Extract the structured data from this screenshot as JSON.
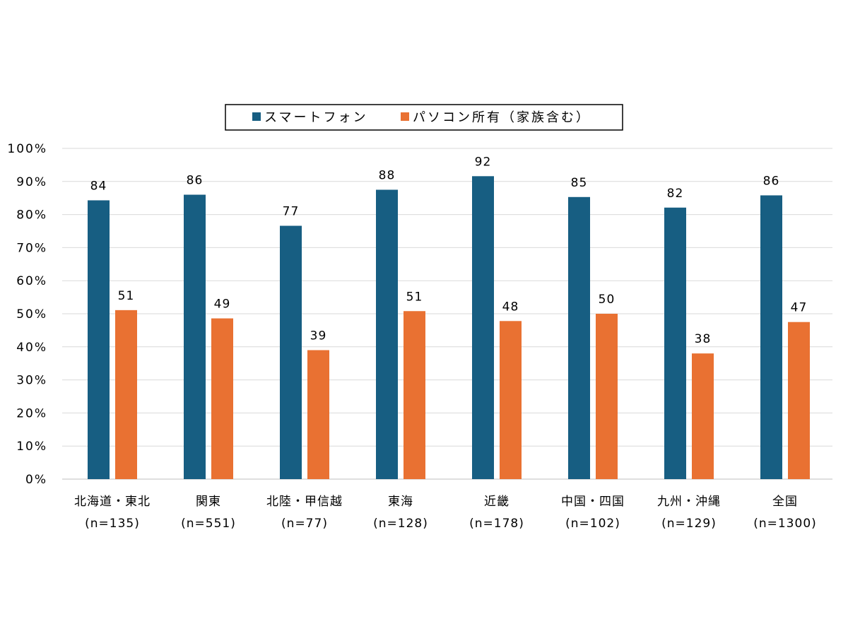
{
  "chart_data": {
    "type": "bar",
    "title": "",
    "xlabel": "",
    "ylabel": "",
    "ylim": [
      0,
      100
    ],
    "ytick_step": 10,
    "ytick_suffix": "%",
    "grid": true,
    "legend_position": "top-center",
    "categories": [
      {
        "name": "北海道・東北",
        "n": "(n=135)"
      },
      {
        "name": "関東",
        "n": "(n=551)"
      },
      {
        "name": "北陸・甲信越",
        "n": "(n=77)"
      },
      {
        "name": "東海",
        "n": "(n=128)"
      },
      {
        "name": "近畿",
        "n": "(n=178)"
      },
      {
        "name": "中国・四国",
        "n": "(n=102)"
      },
      {
        "name": "九州・沖縄",
        "n": "(n=129)"
      },
      {
        "name": "全国",
        "n": "(n=1300)"
      }
    ],
    "series": [
      {
        "name": "スマートフォン",
        "color": "#175e82",
        "values": [
          84.3,
          86.0,
          76.6,
          87.5,
          91.6,
          85.3,
          82.1,
          85.8
        ],
        "labels": [
          "84",
          "86",
          "77",
          "88",
          "92",
          "85",
          "82",
          "86"
        ]
      },
      {
        "name": "パソコン所有（家族含む）",
        "color": "#e97132",
        "values": [
          51.1,
          48.6,
          39.0,
          50.8,
          47.8,
          50.0,
          38.0,
          47.5
        ],
        "labels": [
          "51",
          "49",
          "39",
          "51",
          "48",
          "50",
          "38",
          "47"
        ]
      }
    ]
  }
}
